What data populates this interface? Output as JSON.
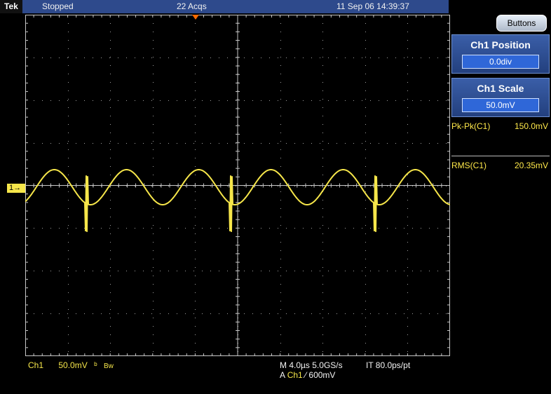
{
  "topbar": {
    "brand": "Tek",
    "state": "Stopped",
    "acqs": "22 Acqs",
    "datetime": "11 Sep 06 14:39:37"
  },
  "side": {
    "buttons_label": "Buttons",
    "ch1_position": {
      "title": "Ch1 Position",
      "value": "0.0div"
    },
    "ch1_scale": {
      "title": "Ch1 Scale",
      "value": "50.0mV"
    },
    "measurements": [
      {
        "label": "Pk-Pk(C1)",
        "value": "150.0mV"
      },
      {
        "label": "RMS(C1)",
        "value": "20.35mV"
      }
    ]
  },
  "channel_marker": "1→",
  "bottom": {
    "ch": "Ch1",
    "vdiv": "50.0mV",
    "bw_symbol": "ᵇ",
    "bw": "Bw",
    "timebase": "M 4.0µs 5.0GS/s",
    "it": "IT 80.0ps/pt",
    "trigger_prefix": "A",
    "trigger_ch": "Ch1",
    "trigger_slope": "⁄",
    "trigger_level": "600mV"
  },
  "colors": {
    "trace": "#f6e64a",
    "grid": "#c7c7c7",
    "panel": "#2a4a92"
  }
}
